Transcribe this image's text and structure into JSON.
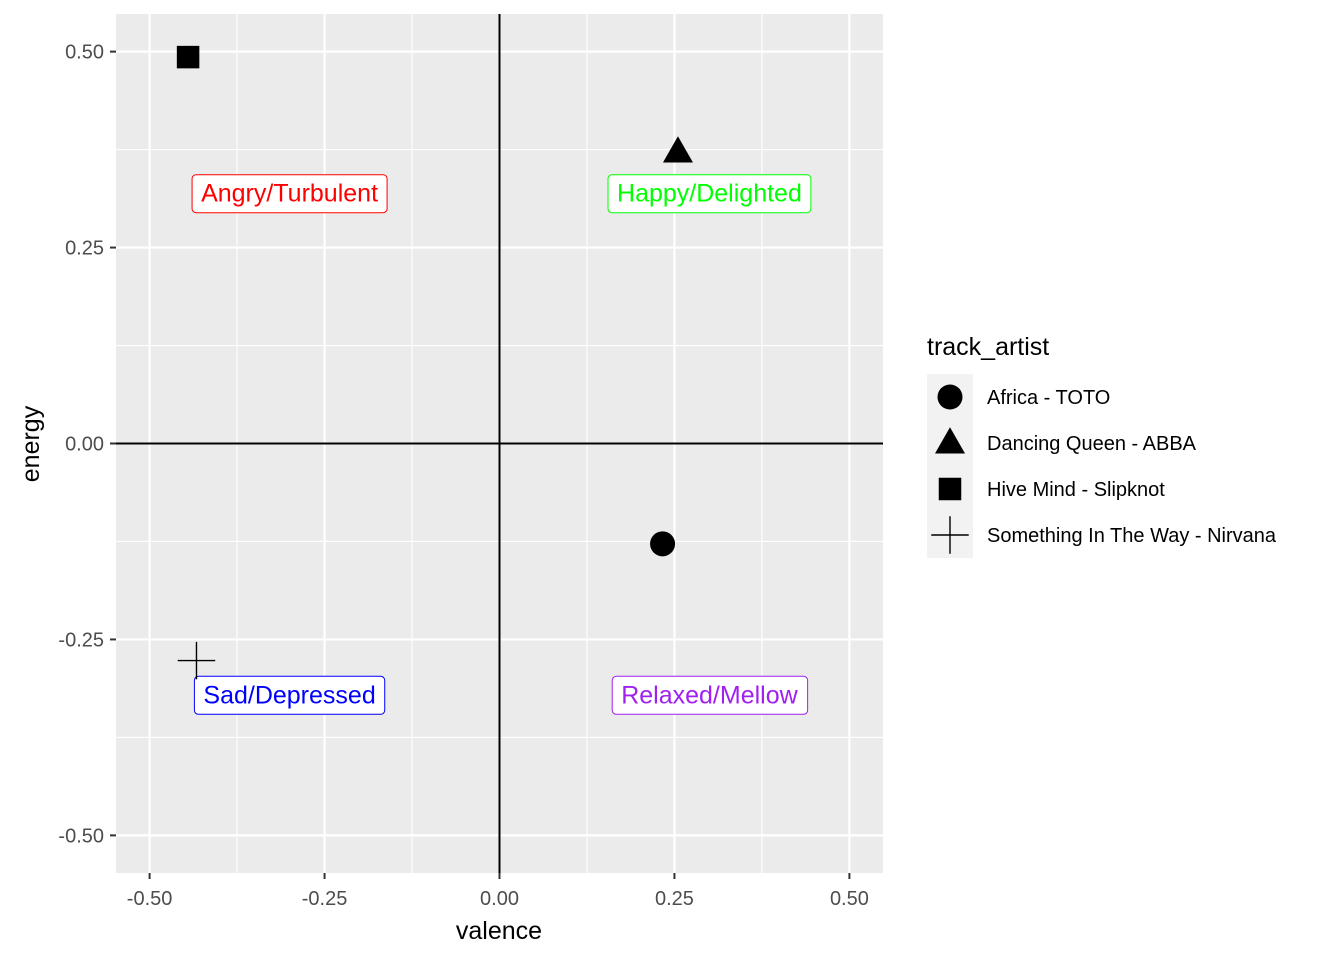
{
  "chart_data": {
    "type": "scatter",
    "xlabel": "valence",
    "ylabel": "energy",
    "xlim": [
      -0.548,
      0.548
    ],
    "ylim": [
      -0.548,
      0.548
    ],
    "x_ticks": [
      -0.5,
      -0.25,
      0.0,
      0.25,
      0.5
    ],
    "x_tick_labels": [
      "-0.50",
      "-0.25",
      "0.00",
      "0.25",
      "0.50"
    ],
    "y_ticks": [
      -0.5,
      -0.25,
      0.0,
      0.25,
      0.5
    ],
    "y_tick_labels": [
      "-0.50",
      "-0.25",
      "0.00",
      "0.25",
      "0.50"
    ],
    "grid": true,
    "reference_lines": {
      "x": 0,
      "y": 0
    },
    "legend": {
      "title": "track_artist",
      "placement": "right"
    },
    "series": [
      {
        "name": "Africa - TOTO",
        "shape": "circle",
        "x": 0.233,
        "y": -0.128
      },
      {
        "name": "Dancing Queen - ABBA",
        "shape": "triangle",
        "x": 0.255,
        "y": 0.372
      },
      {
        "name": "Hive Mind - Slipknot",
        "shape": "square",
        "x": -0.445,
        "y": 0.493
      },
      {
        "name": "Something In The Way - Nirvana",
        "shape": "plus",
        "x": -0.433,
        "y": -0.277
      }
    ],
    "annotations": [
      {
        "text": "Angry/Turbulent",
        "x": -0.3,
        "y": 0.32,
        "color": "#FF0000"
      },
      {
        "text": "Happy/Delighted",
        "x": 0.3,
        "y": 0.32,
        "color": "#00FF00"
      },
      {
        "text": "Sad/Depressed",
        "x": -0.3,
        "y": -0.32,
        "color": "#0000FF"
      },
      {
        "text": "Relaxed/Mellow",
        "x": 0.3,
        "y": -0.32,
        "color": "#A020F0"
      }
    ],
    "colors": {
      "panel_background": "#EBEBEB",
      "grid_major": "#FFFFFF",
      "points": "#000000",
      "legend_key_background": "#F2F2F2"
    }
  }
}
